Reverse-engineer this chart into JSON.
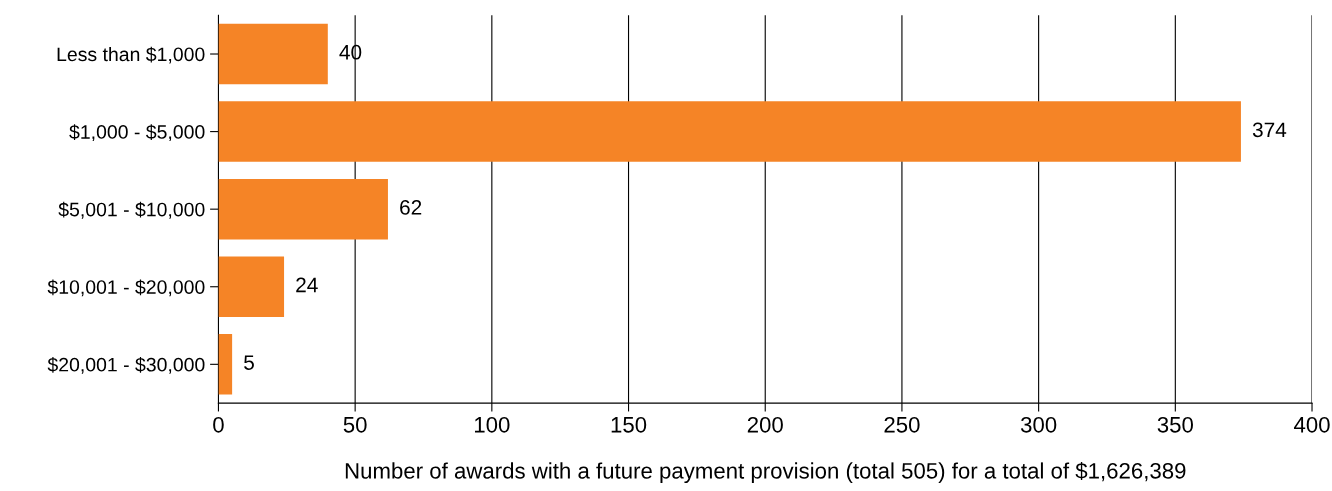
{
  "chart_data": {
    "type": "bar",
    "orientation": "horizontal",
    "xlabel": "Number of awards with a future payment provision (total 505) for a total of $1,626,389",
    "categories": [
      "Less than $1,000",
      "$1,000 - $5,000",
      "$5,001 - $10,000",
      "$10,001 - $20,000",
      "$20,001 - $30,000"
    ],
    "values": [
      40,
      374,
      62,
      24,
      5
    ],
    "color": "#f58426",
    "xlim": [
      0,
      400
    ],
    "xticks": [
      0,
      50,
      100,
      150,
      200,
      250,
      300,
      350,
      400
    ],
    "grid": "x",
    "data_labels": true
  }
}
